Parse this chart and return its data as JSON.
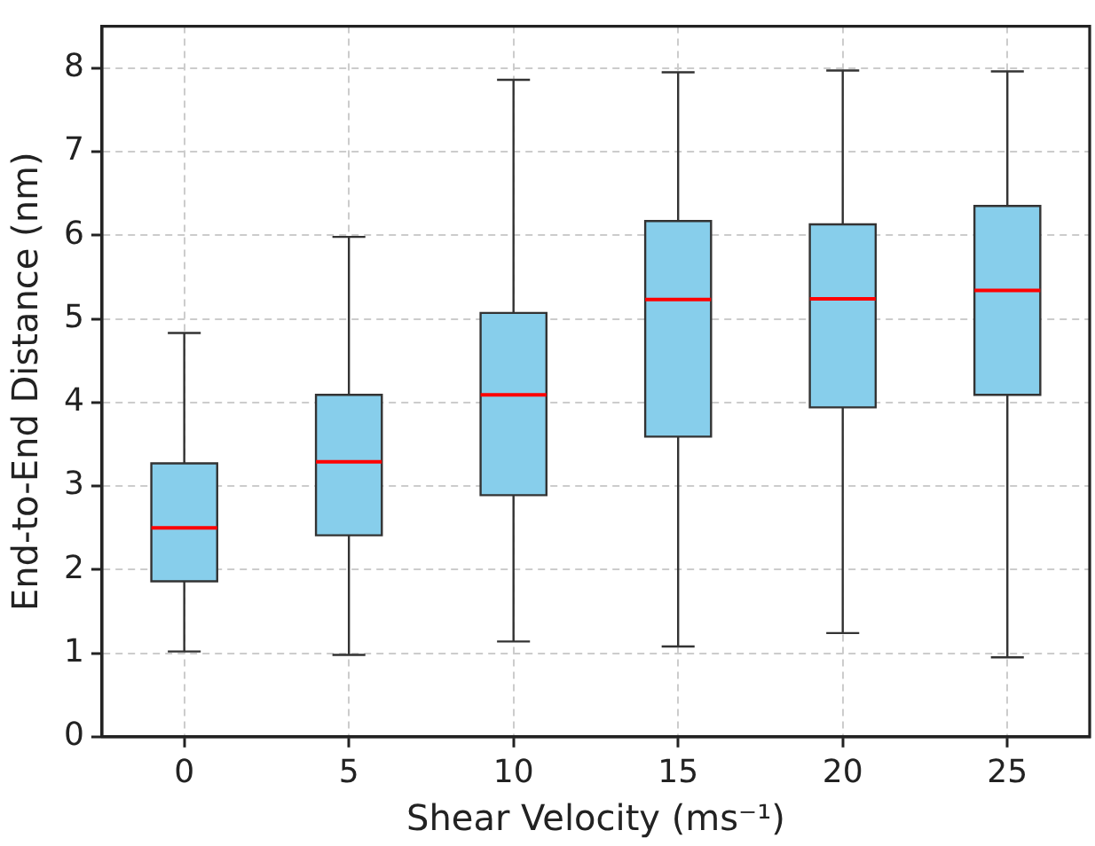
{
  "chart_data": {
    "type": "box",
    "xlabel": "Shear Velocity (ms⁻¹)",
    "ylabel": "End-to-End Distance (nm)",
    "categories": [
      "0",
      "5",
      "10",
      "15",
      "20",
      "25"
    ],
    "series": [
      {
        "color": "#87ceeb",
        "boxes": [
          {
            "low": 1.02,
            "q1": 1.86,
            "median": 2.5,
            "q3": 3.27,
            "high": 4.83
          },
          {
            "low": 0.98,
            "q1": 2.41,
            "median": 3.29,
            "q3": 4.09,
            "high": 5.98
          },
          {
            "low": 1.14,
            "q1": 2.89,
            "median": 4.09,
            "q3": 5.07,
            "high": 7.86
          },
          {
            "low": 1.08,
            "q1": 3.59,
            "median": 5.23,
            "q3": 6.17,
            "high": 7.95
          },
          {
            "low": 1.24,
            "q1": 3.94,
            "median": 5.24,
            "q3": 6.13,
            "high": 7.97
          },
          {
            "low": 0.95,
            "q1": 4.09,
            "median": 5.34,
            "q3": 6.35,
            "high": 7.96
          }
        ]
      }
    ],
    "ylim": [
      0,
      8.5
    ],
    "yticks": [
      0,
      1,
      2,
      3,
      4,
      5,
      6,
      7,
      8
    ],
    "grid": true,
    "legend": false
  }
}
